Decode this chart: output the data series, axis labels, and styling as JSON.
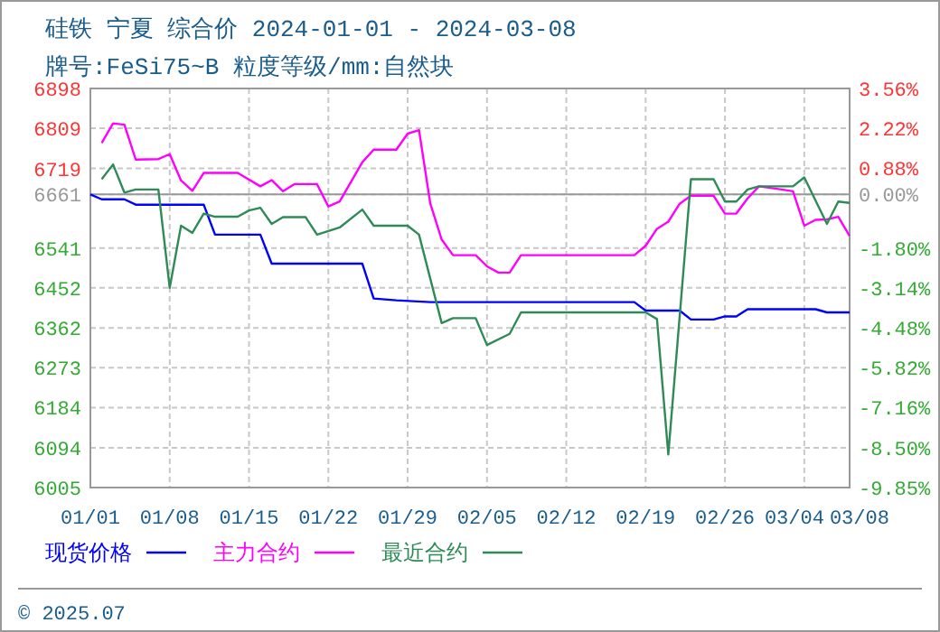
{
  "chart_data": {
    "type": "line",
    "title": "硅铁 宁夏 综合价 2024-01-01 - 2024-03-08",
    "subtitle": "牌号:FeSi75~B 粒度等级/mm:自然块",
    "xlim": [
      "2024-01-01",
      "2024-03-08"
    ],
    "xticks": [
      {
        "value": "2024-01-01",
        "label": "01/01"
      },
      {
        "value": "2024-01-08",
        "label": "01/08"
      },
      {
        "value": "2024-01-15",
        "label": "01/15"
      },
      {
        "value": "2024-01-22",
        "label": "01/22"
      },
      {
        "value": "2024-01-29",
        "label": "01/29"
      },
      {
        "value": "2024-02-05",
        "label": "02/05"
      },
      {
        "value": "2024-02-12",
        "label": "02/12"
      },
      {
        "value": "2024-02-19",
        "label": "02/19"
      },
      {
        "value": "2024-02-26",
        "label": "02/26"
      },
      {
        "value": "2024-03-04",
        "label": "03/04"
      },
      {
        "value": "2024-03-08",
        "label": "03/08"
      }
    ],
    "ylim": [
      6005,
      6898
    ],
    "yticks": [
      6898,
      6809,
      6719,
      6661,
      6541,
      6452,
      6362,
      6273,
      6184,
      6094,
      6005
    ],
    "y2lim": [
      -9.85,
      3.56
    ],
    "y2ticks": [
      {
        "value": 3.56,
        "label": "3.56%"
      },
      {
        "value": 2.22,
        "label": "2.22%"
      },
      {
        "value": 0.88,
        "label": "0.88%"
      },
      {
        "value": 0,
        "label": "0.00%"
      },
      {
        "value": -1.8,
        "label": "-1.80%"
      },
      {
        "value": -3.14,
        "label": "-3.14%"
      },
      {
        "value": -4.48,
        "label": "-4.48%"
      },
      {
        "value": -5.82,
        "label": "-5.82%"
      },
      {
        "value": -7.16,
        "label": "-7.16%"
      },
      {
        "value": -8.5,
        "label": "-8.50%"
      },
      {
        "value": -9.85,
        "label": "-9.85%"
      }
    ],
    "ref_lines": [
      {
        "axis": "y",
        "value": 6661,
        "color": "#999999"
      }
    ],
    "grid": true,
    "legend": "bottom",
    "annotations": [
      "© 2025.07"
    ],
    "series": [
      {
        "name": "现货价格",
        "color": "#0000ff",
        "x": [
          "2024-01-01",
          "2024-01-02",
          "2024-01-04",
          "2024-01-05",
          "2024-01-11",
          "2024-01-12",
          "2024-01-16",
          "2024-01-17",
          "2024-01-25",
          "2024-01-26",
          "2024-01-28",
          "2024-01-31",
          "2024-02-18",
          "2024-02-19",
          "2024-02-22",
          "2024-02-23",
          "2024-02-25",
          "2024-02-26",
          "2024-02-27",
          "2024-02-28",
          "2024-03-05",
          "2024-03-06",
          "2024-03-08"
        ],
        "values": [
          6661,
          6650,
          6650,
          6638,
          6638,
          6571,
          6571,
          6506,
          6506,
          6428,
          6424,
          6420,
          6420,
          6401,
          6401,
          6381,
          6381,
          6388,
          6388,
          6404,
          6404,
          6397,
          6397
        ]
      },
      {
        "name": "主力合约",
        "color": "#ff00ff",
        "x": [
          "2024-01-02",
          "2024-01-03",
          "2024-01-04",
          "2024-01-05",
          "2024-01-07",
          "2024-01-08",
          "2024-01-09",
          "2024-01-10",
          "2024-01-11",
          "2024-01-14",
          "2024-01-16",
          "2024-01-17",
          "2024-01-18",
          "2024-01-19",
          "2024-01-21",
          "2024-01-22",
          "2024-01-23",
          "2024-01-25",
          "2024-01-26",
          "2024-01-28",
          "2024-01-29",
          "2024-01-30",
          "2024-01-31",
          "2024-02-01",
          "2024-02-02",
          "2024-02-04",
          "2024-02-05",
          "2024-02-06",
          "2024-02-07",
          "2024-02-08",
          "2024-02-18",
          "2024-02-19",
          "2024-02-20",
          "2024-02-21",
          "2024-02-22",
          "2024-02-23",
          "2024-02-25",
          "2024-02-26",
          "2024-02-27",
          "2024-02-28",
          "2024-02-29",
          "2024-03-02",
          "2024-03-03",
          "2024-03-04",
          "2024-03-05",
          "2024-03-06",
          "2024-03-07",
          "2024-03-08"
        ],
        "values": [
          6776,
          6820,
          6817,
          6739,
          6740,
          6751,
          6692,
          6669,
          6709,
          6709,
          6679,
          6693,
          6668,
          6684,
          6684,
          6634,
          6645,
          6733,
          6761,
          6761,
          6797,
          6805,
          6640,
          6560,
          6525,
          6525,
          6500,
          6486,
          6486,
          6525,
          6525,
          6546,
          6584,
          6600,
          6640,
          6658,
          6658,
          6618,
          6618,
          6652,
          6679,
          6672,
          6668,
          6591,
          6604,
          6605,
          6611,
          6568
        ]
      },
      {
        "name": "最近合约",
        "color": "#2e8b57",
        "x": [
          "2024-01-02",
          "2024-01-03",
          "2024-01-04",
          "2024-01-05",
          "2024-01-07",
          "2024-01-08",
          "2024-01-09",
          "2024-01-10",
          "2024-01-11",
          "2024-01-12",
          "2024-01-14",
          "2024-01-15",
          "2024-01-16",
          "2024-01-17",
          "2024-01-18",
          "2024-01-20",
          "2024-01-21",
          "2024-01-23",
          "2024-01-25",
          "2024-01-26",
          "2024-01-29",
          "2024-01-30",
          "2024-02-01",
          "2024-02-02",
          "2024-02-04",
          "2024-02-05",
          "2024-02-07",
          "2024-02-08",
          "2024-02-19",
          "2024-02-20",
          "2024-02-21",
          "2024-02-23",
          "2024-02-25",
          "2024-02-26",
          "2024-02-27",
          "2024-02-28",
          "2024-02-29",
          "2024-03-03",
          "2024-03-04",
          "2024-03-06",
          "2024-03-07",
          "2024-03-08"
        ],
        "values": [
          6695,
          6728,
          6665,
          6672,
          6672,
          6452,
          6591,
          6575,
          6618,
          6611,
          6611,
          6625,
          6631,
          6595,
          6610,
          6610,
          6571,
          6587,
          6627,
          6591,
          6591,
          6571,
          6373,
          6384,
          6384,
          6324,
          6349,
          6397,
          6397,
          6382,
          6079,
          6695,
          6695,
          6645,
          6645,
          6672,
          6679,
          6679,
          6699,
          6595,
          6645,
          6642
        ]
      }
    ]
  }
}
